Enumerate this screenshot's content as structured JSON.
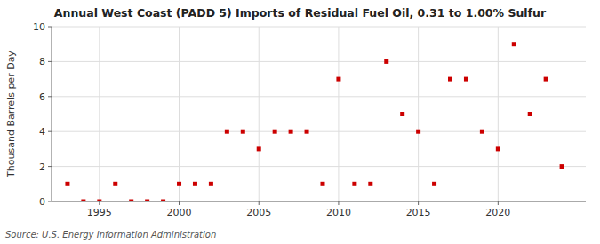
{
  "chart_data": {
    "type": "scatter",
    "title": "Annual West Coast (PADD 5) Imports of Residual Fuel Oil, 0.31 to 1.00% Sulfur",
    "ylabel": "Thousand Barrels per Day",
    "source": "Source: U.S. Energy Information Administration",
    "x": [
      1993,
      1994,
      1995,
      1996,
      1997,
      1998,
      1999,
      2000,
      2001,
      2002,
      2003,
      2004,
      2005,
      2006,
      2007,
      2008,
      2009,
      2010,
      2011,
      2012,
      2013,
      2014,
      2015,
      2016,
      2017,
      2018,
      2019,
      2020,
      2021,
      2022,
      2023,
      2024
    ],
    "values": [
      1,
      0,
      0,
      1,
      0,
      0,
      0,
      1,
      1,
      1,
      4,
      4,
      3,
      4,
      4,
      4,
      1,
      7,
      1,
      1,
      8,
      5,
      4,
      1,
      7,
      7,
      4,
      3,
      9,
      5,
      7,
      2
    ],
    "color": "#cc0000",
    "marker": "square",
    "xlim": [
      1992.0,
      2025.5
    ],
    "xticks": [
      1995,
      2000,
      2005,
      2010,
      2015,
      2020
    ],
    "ylim": [
      0,
      10
    ],
    "yticks": [
      0,
      2,
      4,
      6,
      8,
      10
    ],
    "grid": true
  }
}
